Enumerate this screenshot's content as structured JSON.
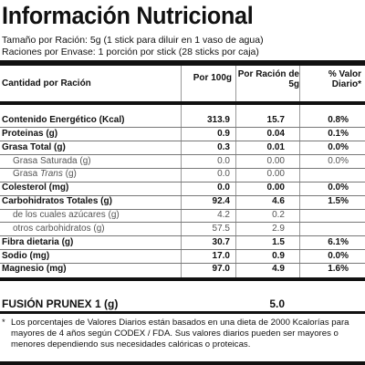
{
  "title": "Información Nutricional",
  "serving": {
    "size": "Tamaño por Ración: 5g (1 stick para diluir en 1 vaso de agua)",
    "per_container": "Raciones por Envase: 1 porción por stick (28 sticks por caja)"
  },
  "header": {
    "name": "Cantidad por Ración",
    "col1": "Por 100g",
    "col2": "Por Ración de 5g",
    "col3": "% Valor Diario*"
  },
  "rows": [
    {
      "name": "Contenido Energético (Kcal)",
      "c1": "313.9",
      "c2": "15.7",
      "c3": "0.8%",
      "sub": false
    },
    {
      "name": "Proteinas (g)",
      "c1": "0.9",
      "c2": "0.04",
      "c3": "0.1%",
      "sub": false
    },
    {
      "name": "Grasa Total (g)",
      "c1": "0.3",
      "c2": "0.01",
      "c3": "0.0%",
      "sub": false
    },
    {
      "name": "Grasa Saturada (g)",
      "c1": "0.0",
      "c2": "0.00",
      "c3": "0.0%",
      "sub": true
    },
    {
      "name": "Grasa Trans (g)",
      "c1": "0.0",
      "c2": "0.00",
      "c3": "",
      "sub": true
    },
    {
      "name": "Colesterol (mg)",
      "c1": "0.0",
      "c2": "0.00",
      "c3": "0.0%",
      "sub": false
    },
    {
      "name": "Carbohidratos Totales (g)",
      "c1": "92.4",
      "c2": "4.6",
      "c3": "1.5%",
      "sub": false
    },
    {
      "name": "de los cuales azúcares (g)",
      "c1": "4.2",
      "c2": "0.2",
      "c3": "",
      "sub": true
    },
    {
      "name": "otros carbohidratos (g)",
      "c1": "57.5",
      "c2": "2.9",
      "c3": "",
      "sub": true
    },
    {
      "name": "Fibra dietaria (g)",
      "c1": "30.7",
      "c2": "1.5",
      "c3": "6.1%",
      "sub": false
    },
    {
      "name": "Sodio (mg)",
      "c1": "17.0",
      "c2": "0.9",
      "c3": "0.0%",
      "sub": false
    },
    {
      "name": "Magnesio (mg)",
      "c1": "97.0",
      "c2": "4.9",
      "c3": "1.6%",
      "sub": false
    }
  ],
  "prunex": {
    "name": "FUSIÓN PRUNEX 1 (g)",
    "value": "5.0"
  },
  "footnote": {
    "star": "*",
    "text": "Los porcentajes de Valores Diarios están basados en una dieta de 2000 Kcalorías para mayores de 4 años según CODEX / FDA. Sus valores diarios pueden ser mayores o menores dependiendo sus necesidades calóricas o proteicas."
  }
}
